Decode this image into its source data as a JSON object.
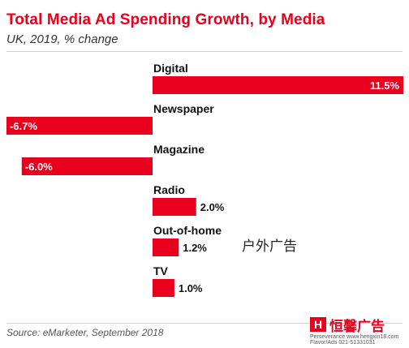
{
  "header": {
    "title": "Total Media Ad Spending Growth, by Media",
    "subtitle": "UK, 2019, % change"
  },
  "footer": {
    "source": "Source: eMarketer, September 2018"
  },
  "annotation": {
    "text": "户外广告"
  },
  "watermark": {
    "brand": "恒馨广告",
    "logo": "H",
    "line1": "Perseverance  www.hengxin18.com",
    "line2": "Flavor/Ads  021-51331031"
  },
  "colors": {
    "bar": "#e8001c",
    "title": "#e8001c"
  },
  "chart_data": {
    "type": "bar",
    "orientation": "horizontal",
    "title": "Total Media Ad Spending Growth, by Media",
    "subtitle": "UK, 2019, % change",
    "categories": [
      "Digital",
      "Newspaper",
      "Magazine",
      "Radio",
      "Out-of-home",
      "TV"
    ],
    "values": [
      11.5,
      -6.7,
      -6.0,
      2.0,
      1.2,
      1.0
    ],
    "value_labels": [
      "11.5%",
      "-6.7%",
      "-6.0%",
      "2.0%",
      "1.2%",
      "1.0%"
    ],
    "unit": "%",
    "grid": false,
    "legend": "none"
  }
}
